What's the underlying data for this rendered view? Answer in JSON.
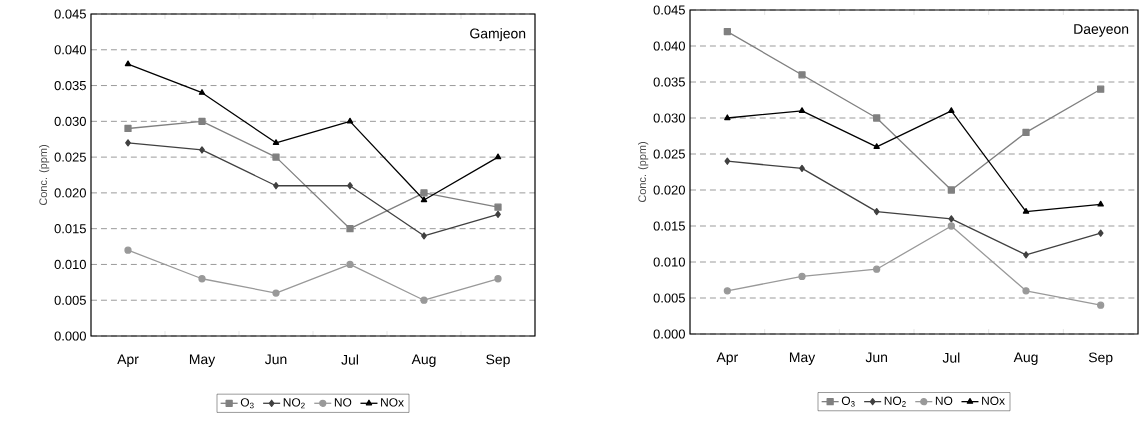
{
  "chart_data": [
    {
      "type": "line",
      "title": "Gamjeon",
      "ylabel": "Conc. (ppm)",
      "categories": [
        "Apr",
        "May",
        "Jun",
        "Jul",
        "Aug",
        "Sep"
      ],
      "ylim": [
        0,
        0.045
      ],
      "yticks": [
        {
          "value": 0,
          "label": "0.000"
        },
        {
          "value": 0.005,
          "label": "0.005"
        },
        {
          "value": 0.01,
          "label": "0.010"
        },
        {
          "value": 0.015,
          "label": "0.015"
        },
        {
          "value": 0.02,
          "label": "0.020"
        },
        {
          "value": 0.025,
          "label": "0.025"
        },
        {
          "value": 0.03,
          "label": "0.030"
        },
        {
          "value": 0.035,
          "label": "0.035"
        },
        {
          "value": 0.04,
          "label": "0.040"
        },
        {
          "value": 0.045,
          "label": "0.045"
        }
      ],
      "grid": "y",
      "legend": "bottom",
      "line_style": "solid",
      "series": [
        {
          "name": "O$_{3}$",
          "color": "#808080",
          "marker": "square",
          "values": [
            0.029,
            0.03,
            0.025,
            0.015,
            0.02,
            0.018
          ]
        },
        {
          "name": "NO$_{2}$",
          "color": "#404040",
          "marker": "diamond",
          "values": [
            0.027,
            0.026,
            0.021,
            0.021,
            0.014,
            0.017
          ]
        },
        {
          "name": "NO",
          "color": "#999999",
          "marker": "circle",
          "values": [
            0.012,
            0.008,
            0.006,
            0.01,
            0.005,
            0.008
          ]
        },
        {
          "name": "NOx",
          "color": "#000000",
          "marker": "triangle",
          "values": [
            0.038,
            0.034,
            0.027,
            0.03,
            0.019,
            0.025
          ]
        }
      ]
    },
    {
      "type": "line",
      "title": "Daeyeon",
      "ylabel": "Conc. (ppm)",
      "categories": [
        "Apr",
        "May",
        "Jun",
        "Jul",
        "Aug",
        "Sep"
      ],
      "ylim": [
        0,
        0.045
      ],
      "yticks": [
        {
          "value": 0,
          "label": "0.000"
        },
        {
          "value": 0.005,
          "label": "0.005"
        },
        {
          "value": 0.01,
          "label": "0.010"
        },
        {
          "value": 0.015,
          "label": "0.015"
        },
        {
          "value": 0.02,
          "label": "0.020"
        },
        {
          "value": 0.025,
          "label": "0.025"
        },
        {
          "value": 0.03,
          "label": "0.030"
        },
        {
          "value": 0.035,
          "label": "0.035"
        },
        {
          "value": 0.04,
          "label": "0.040"
        },
        {
          "value": 0.045,
          "label": "0.045"
        }
      ],
      "grid": "y",
      "legend": "bottom",
      "line_style": "solid",
      "series": [
        {
          "name": "O$_{3}$",
          "color": "#808080",
          "marker": "square",
          "values": [
            0.042,
            0.036,
            0.03,
            0.02,
            0.028,
            0.034
          ]
        },
        {
          "name": "NO$_{2}$",
          "color": "#404040",
          "marker": "diamond",
          "values": [
            0.024,
            0.023,
            0.017,
            0.016,
            0.011,
            0.014
          ]
        },
        {
          "name": "NO",
          "color": "#999999",
          "marker": "circle",
          "values": [
            0.006,
            0.008,
            0.009,
            0.015,
            0.006,
            0.004
          ]
        },
        {
          "name": "NOx",
          "color": "#000000",
          "marker": "triangle",
          "values": [
            0.03,
            0.031,
            0.026,
            0.031,
            0.017,
            0.018
          ]
        }
      ]
    }
  ]
}
